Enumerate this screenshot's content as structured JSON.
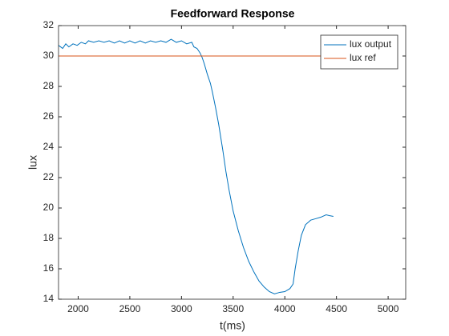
{
  "chart_data": {
    "type": "line",
    "title": "Feedforward Response",
    "x_label": "t(ms)",
    "y_label": "lux",
    "x": [
      1810,
      1850,
      1880,
      1910,
      1950,
      1990,
      2030,
      2070,
      2100,
      2150,
      2200,
      2250,
      2300,
      2350,
      2400,
      2450,
      2500,
      2550,
      2600,
      2650,
      2700,
      2750,
      2800,
      2850,
      2900,
      2950,
      3000,
      3050,
      3100,
      3120,
      3150,
      3180,
      3200,
      3220,
      3250,
      3280,
      3300,
      3330,
      3360,
      3400,
      3430,
      3460,
      3500,
      3550,
      3600,
      3650,
      3700,
      3750,
      3800,
      3850,
      3900,
      3950,
      4000,
      4050,
      4080,
      4100,
      4130,
      4160,
      4200,
      4250,
      4300,
      4350,
      4400,
      4430,
      4470
    ],
    "series": [
      {
        "name": "lux output",
        "color": "#0072bd",
        "values": [
          30.7,
          30.5,
          30.8,
          30.6,
          30.8,
          30.7,
          30.9,
          30.8,
          31.0,
          30.9,
          31.0,
          30.9,
          31.0,
          30.85,
          31.0,
          30.85,
          31.0,
          30.85,
          31.0,
          30.85,
          31.0,
          30.9,
          31.0,
          30.9,
          31.1,
          30.9,
          31.0,
          30.8,
          30.9,
          30.6,
          30.5,
          30.2,
          29.9,
          29.5,
          28.8,
          28.2,
          27.6,
          26.6,
          25.5,
          23.8,
          22.4,
          21.2,
          19.8,
          18.5,
          17.4,
          16.5,
          15.8,
          15.2,
          14.8,
          14.5,
          14.35,
          14.45,
          14.5,
          14.7,
          15.0,
          16.0,
          17.2,
          18.2,
          18.9,
          19.2,
          19.3,
          19.4,
          19.55,
          19.5,
          19.45
        ]
      },
      {
        "name": "lux ref",
        "color": "#d95319",
        "values": [
          30,
          30,
          30,
          30,
          30,
          30,
          30,
          30,
          30,
          30,
          30,
          30,
          30,
          30,
          30,
          30,
          30,
          30,
          30,
          30,
          30,
          30,
          30,
          30,
          30,
          30,
          30,
          30,
          30,
          30,
          30,
          30,
          30,
          30,
          30,
          30,
          30,
          30,
          30,
          30,
          30,
          30,
          30,
          30,
          30,
          30,
          30,
          30,
          30,
          30,
          30,
          30,
          30,
          30,
          30,
          30,
          30,
          30,
          30,
          30,
          30,
          30,
          30,
          30,
          30
        ]
      }
    ],
    "xlim": [
      1810,
      5170
    ],
    "ylim": [
      14,
      32
    ],
    "xticks": [
      2000,
      2500,
      3000,
      3500,
      4000,
      4500,
      5000
    ],
    "yticks": [
      14,
      16,
      18,
      20,
      22,
      24,
      26,
      28,
      30,
      32
    ],
    "full_width_ref": true,
    "legend": "northeast"
  }
}
